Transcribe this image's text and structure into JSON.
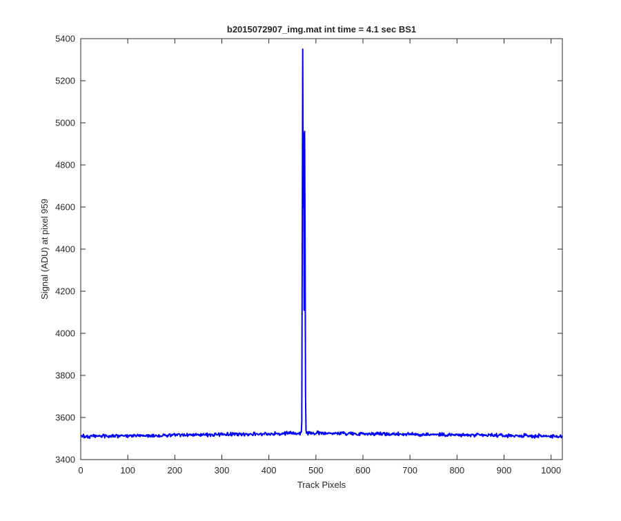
{
  "chart_data": {
    "type": "line",
    "title": "b2015072907_img.mat int time = 4.1 sec   BS1",
    "xlabel": "Track Pixels",
    "ylabel": "Signal (ADU) at pixel 959",
    "xlim": [
      0,
      1024
    ],
    "ylim": [
      3400,
      5400
    ],
    "xticks": [
      0,
      100,
      200,
      300,
      400,
      500,
      600,
      700,
      800,
      900,
      1000
    ],
    "yticks": [
      3400,
      3600,
      3800,
      4000,
      4200,
      4400,
      4600,
      4800,
      5000,
      5200,
      5400
    ],
    "grid": false,
    "legend": "none",
    "series": [
      {
        "color": "#0000ff",
        "baseline": {
          "x_range": [
            1,
            1024
          ],
          "level_start": 3510,
          "level_peak": 3526,
          "level_end": 3510,
          "noise_amplitude": 12,
          "seed": 959
        },
        "peak_points": [
          {
            "x": 469,
            "y": 3530
          },
          {
            "x": 470,
            "y": 3580
          },
          {
            "x": 471,
            "y": 4450
          },
          {
            "x": 472,
            "y": 5350
          },
          {
            "x": 473,
            "y": 4600
          },
          {
            "x": 474,
            "y": 4950
          },
          {
            "x": 475,
            "y": 4110
          },
          {
            "x": 476,
            "y": 4960
          },
          {
            "x": 477,
            "y": 4450
          },
          {
            "x": 478,
            "y": 3700
          },
          {
            "x": 479,
            "y": 3540
          },
          {
            "x": 480,
            "y": 3525
          }
        ]
      }
    ]
  }
}
